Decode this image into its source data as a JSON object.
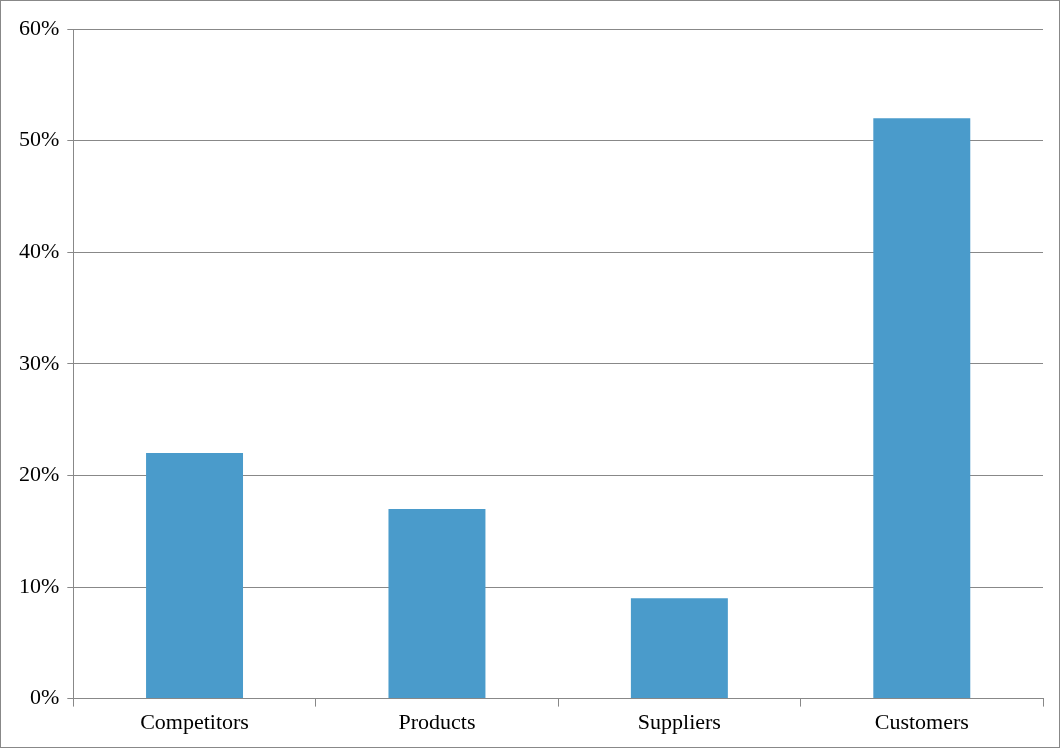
{
  "chart_data": {
    "type": "bar",
    "categories": [
      "Competitors",
      "Products",
      "Suppliers",
      "Customers"
    ],
    "values": [
      22,
      17,
      9,
      52
    ],
    "color": "#4a9bcb",
    "ylim": [
      0,
      60
    ],
    "yticks": [
      {
        "value": 0,
        "label": "0%"
      },
      {
        "value": 10,
        "label": "10%"
      },
      {
        "value": 20,
        "label": "20%"
      },
      {
        "value": 30,
        "label": "30%"
      },
      {
        "value": 40,
        "label": "40%"
      },
      {
        "value": 50,
        "label": "50%"
      },
      {
        "value": 60,
        "label": "60%"
      }
    ],
    "grid": "y"
  }
}
